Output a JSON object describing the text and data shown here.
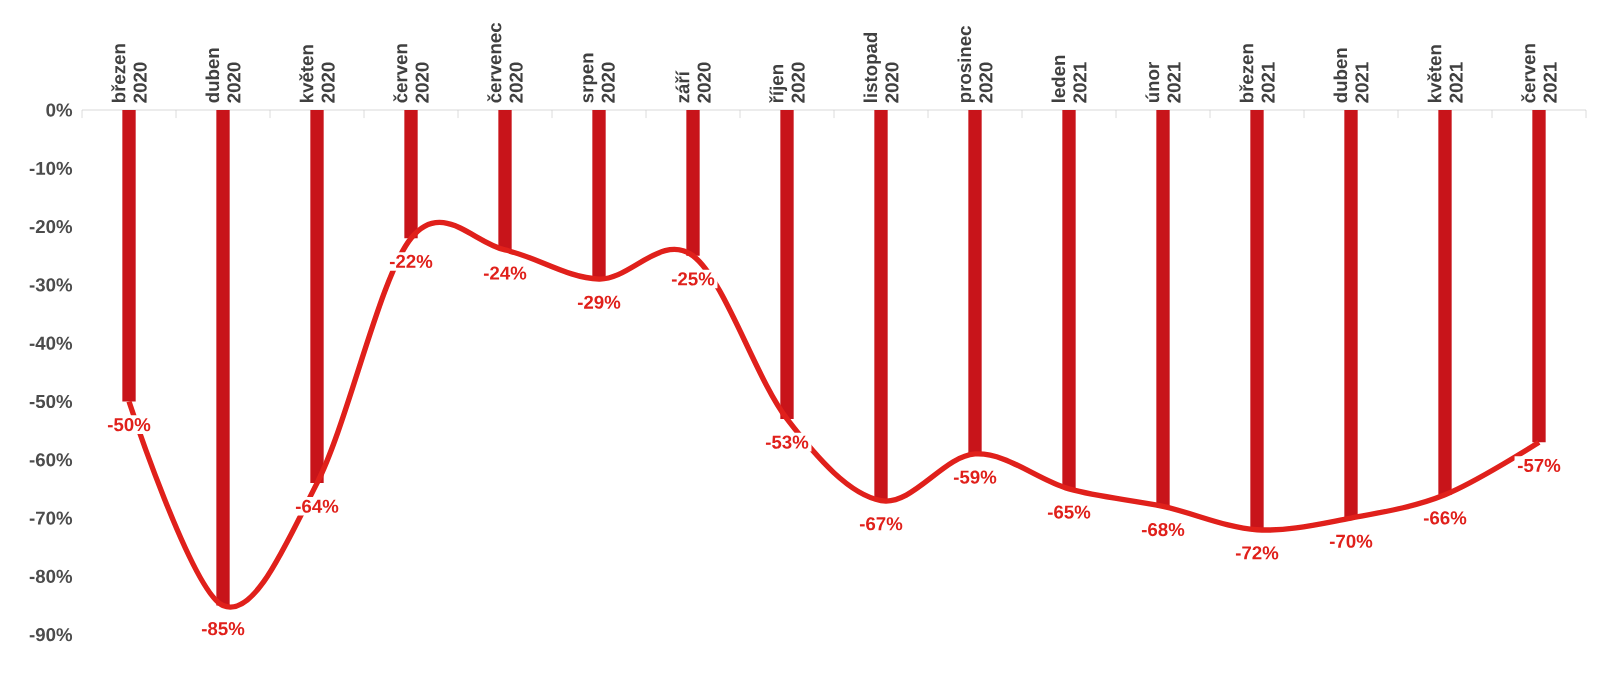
{
  "chart_data": {
    "type": "line",
    "categories": [
      "březen 2020",
      "duben 2020",
      "květen 2020",
      "červen 2020",
      "červenec 2020",
      "srpen 2020",
      "září 2020",
      "říjen 2020",
      "listopad 2020",
      "prosinec 2020",
      "leden 2021",
      "únor 2021",
      "březen 2021",
      "duben 2021",
      "květen 2021",
      "červen 2021"
    ],
    "series": [
      {
        "type": "bar",
        "color": "#c8141a",
        "values": [
          -50,
          -85,
          -64,
          -22,
          -24,
          -29,
          -25,
          -53,
          -67,
          -59,
          -65,
          -68,
          -72,
          -70,
          -66,
          -57
        ]
      },
      {
        "color": "#e0201b",
        "values": [
          -50,
          -85,
          -64,
          -22,
          -24,
          -29,
          -25,
          -53,
          -67,
          -59,
          -65,
          -68,
          -72,
          -70,
          -66,
          -57
        ],
        "value_labels": [
          "-50%",
          "-85%",
          "-64%",
          "-22%",
          "-24%",
          "-29%",
          "-25%",
          "-53%",
          "-67%",
          "-59%",
          "-65%",
          "-68%",
          "-72%",
          "-70%",
          "-66%",
          "-57%"
        ]
      }
    ],
    "ylim": [
      -90,
      0
    ],
    "yticks": [
      {
        "value": -90,
        "label": "-90%"
      },
      {
        "value": -80,
        "label": "-80%"
      },
      {
        "value": -70,
        "label": "-70%"
      },
      {
        "value": -60,
        "label": "-60%"
      },
      {
        "value": -50,
        "label": "-50%"
      },
      {
        "value": -40,
        "label": "-40%"
      },
      {
        "value": -30,
        "label": "-30%"
      },
      {
        "value": -20,
        "label": "-20%"
      },
      {
        "value": -10,
        "label": "-10%"
      },
      {
        "value": 0,
        "label": "0%"
      }
    ],
    "grid": false,
    "marker": "none",
    "line_style": "solid"
  }
}
